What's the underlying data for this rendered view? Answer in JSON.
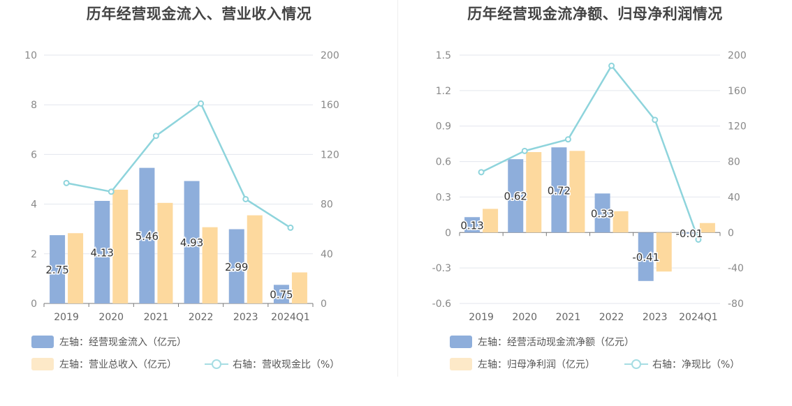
{
  "chart_data": [
    {
      "type": "bar+line",
      "title": "历年经营现金流入、营业收入情况",
      "categories": [
        "2019",
        "2020",
        "2021",
        "2022",
        "2023",
        "2024Q1"
      ],
      "y_left": {
        "min": 0,
        "max": 10,
        "ticks": [
          "0",
          "2",
          "4",
          "6",
          "8",
          "10"
        ]
      },
      "y_right": {
        "min": 0,
        "max": 200,
        "ticks": [
          "0",
          "40",
          "80",
          "120",
          "160",
          "200"
        ]
      },
      "series": [
        {
          "name": "左轴：经营现金流入（亿元）",
          "type": "bar",
          "axis": "left",
          "color": "#8eaedb",
          "values": [
            2.75,
            4.13,
            5.46,
            4.93,
            2.99,
            0.75
          ],
          "labels": [
            "2.75",
            "4.13",
            "5.46",
            "4.93",
            "2.99",
            "0.75"
          ]
        },
        {
          "name": "左轴：营业总收入（亿元）",
          "type": "bar",
          "axis": "left",
          "color": "#fdd99e",
          "values": [
            2.83,
            4.58,
            4.05,
            3.07,
            3.55,
            1.25
          ]
        },
        {
          "name": "右轴：营收现金比（%）",
          "type": "line",
          "axis": "right",
          "color": "#8ed4dc",
          "values": [
            97,
            90,
            135,
            161,
            84,
            61
          ]
        }
      ],
      "legend_colors": [
        "#8eaedb",
        "#fde9c8",
        "#a6dde3"
      ]
    },
    {
      "type": "bar+line",
      "title": "历年经营现金流净额、归母净利润情况",
      "categories": [
        "2019",
        "2020",
        "2021",
        "2022",
        "2023",
        "2024Q1"
      ],
      "y_left": {
        "min": -0.6,
        "max": 1.5,
        "ticks": [
          "-0.6",
          "-0.3",
          "0",
          "0.3",
          "0.6",
          "0.9",
          "1.2",
          "1.5"
        ]
      },
      "y_right": {
        "min": -80,
        "max": 200,
        "ticks": [
          "-80",
          "-40",
          "0",
          "40",
          "80",
          "120",
          "160",
          "200"
        ]
      },
      "series": [
        {
          "name": "左轴：经营活动现金流净额（亿元）",
          "type": "bar",
          "axis": "left",
          "color": "#8eaedb",
          "values": [
            0.13,
            0.62,
            0.72,
            0.33,
            -0.41,
            -0.01
          ],
          "labels": [
            "0.13",
            "0.62",
            "0.72",
            "0.33",
            "-0.41",
            "-0.01"
          ]
        },
        {
          "name": "左轴：归母净利润（亿元）",
          "type": "bar",
          "axis": "left",
          "color": "#fdd99e",
          "values": [
            0.2,
            0.68,
            0.69,
            0.18,
            -0.33,
            0.08
          ]
        },
        {
          "name": "右轴：净现比（%）",
          "type": "line",
          "axis": "right",
          "color": "#8ed4dc",
          "values": [
            68,
            92,
            105,
            188,
            127,
            -8
          ]
        }
      ],
      "legend_colors": [
        "#8eaedb",
        "#fde9c8",
        "#a6dde3"
      ]
    }
  ]
}
